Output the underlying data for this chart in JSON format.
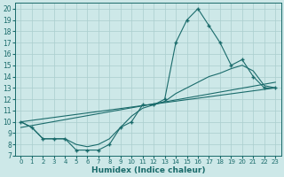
{
  "title": "",
  "xlabel": "Humidex (Indice chaleur)",
  "xlim": [
    -0.5,
    23.5
  ],
  "ylim": [
    7,
    20.5
  ],
  "xticks": [
    0,
    1,
    2,
    3,
    4,
    5,
    6,
    7,
    8,
    9,
    10,
    11,
    12,
    13,
    14,
    15,
    16,
    17,
    18,
    19,
    20,
    21,
    22,
    23
  ],
  "yticks": [
    7,
    8,
    9,
    10,
    11,
    12,
    13,
    14,
    15,
    16,
    17,
    18,
    19,
    20
  ],
  "bg_color": "#cde8e8",
  "grid_color": "#aacece",
  "line_color": "#1a6b6b",
  "line1_x": [
    0,
    1,
    2,
    3,
    4,
    5,
    6,
    7,
    8,
    9,
    10,
    11,
    12,
    13,
    14,
    15,
    16,
    17,
    18,
    19,
    20,
    21,
    22,
    23
  ],
  "line1_y": [
    10.0,
    9.5,
    8.5,
    8.5,
    8.5,
    7.5,
    7.5,
    7.5,
    8.0,
    9.5,
    10.0,
    11.5,
    11.5,
    12.0,
    17.0,
    19.0,
    20.0,
    18.5,
    17.0,
    15.0,
    15.5,
    14.0,
    13.0,
    13.0
  ],
  "line2_x": [
    0,
    23
  ],
  "line2_y": [
    10.0,
    13.0
  ],
  "line3_x": [
    0,
    1,
    2,
    3,
    4,
    5,
    6,
    7,
    8,
    9,
    10,
    11,
    12,
    13,
    14,
    15,
    16,
    17,
    18,
    19,
    20,
    21,
    22,
    23
  ],
  "line3_y": [
    10.0,
    9.5,
    8.5,
    8.5,
    8.5,
    8.0,
    7.8,
    8.0,
    8.5,
    9.5,
    10.5,
    11.2,
    11.5,
    11.8,
    12.5,
    13.0,
    13.5,
    14.0,
    14.3,
    14.7,
    15.0,
    14.5,
    13.2,
    13.0
  ],
  "line4_x": [
    0,
    23
  ],
  "line4_y": [
    9.5,
    13.5
  ],
  "figsize": [
    3.2,
    2.0
  ],
  "dpi": 100
}
